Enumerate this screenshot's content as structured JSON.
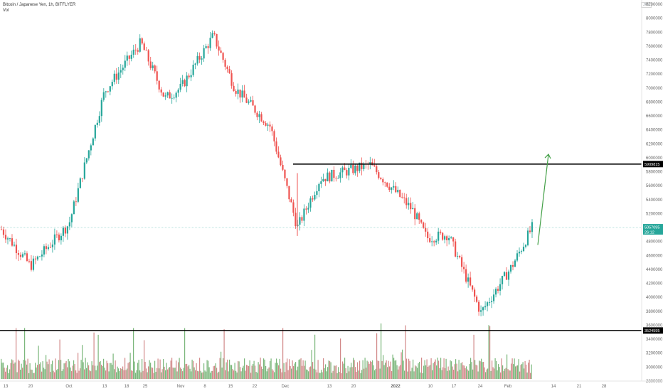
{
  "legend": {
    "symbol_line": "Bitcoin / Japanese Yen, 1h, BITFLYER",
    "volume_label": "Vol"
  },
  "currency_badge": "JPY",
  "chart_data": {
    "type": "candlestick",
    "title": "Bitcoin / Japanese Yen, 1h, BITFLYER",
    "y_axis_ticks": [
      "8200000",
      "8000000",
      "7800000",
      "7600000",
      "7400000",
      "7200000",
      "7000000",
      "6800000",
      "6600000",
      "6400000",
      "6200000",
      "6000000",
      "5800000",
      "5600000",
      "5400000",
      "5200000",
      "5000000",
      "4800000",
      "4600000",
      "4400000",
      "4200000",
      "4000000",
      "3800000",
      "3600000",
      "3400000",
      "3200000",
      "3000000",
      "2800000"
    ],
    "ylim": [
      2800000,
      8200000
    ],
    "x_axis_ticks": [
      "13",
      "20",
      "Oct",
      "13",
      "18",
      "25",
      "Nov",
      "8",
      "15",
      "22",
      "Dec",
      "13",
      "20",
      "2022",
      "10",
      "17",
      "24",
      "Feb",
      "14",
      "21",
      "28"
    ],
    "price_path": [
      [
        "13",
        5000000
      ],
      [
        "20",
        4450000
      ],
      [
        "Oct",
        5050000
      ],
      [
        "13",
        6950000
      ],
      [
        "18",
        7650000
      ],
      [
        "25",
        6850000
      ],
      [
        "Nov",
        7000000
      ],
      [
        "8",
        7750000
      ],
      [
        "15",
        7000000
      ],
      [
        "22",
        6450000
      ],
      [
        "Dec",
        5000000
      ],
      [
        "13",
        5700000
      ],
      [
        "20",
        5900000
      ],
      [
        "2022",
        5250000
      ],
      [
        "10",
        4850000
      ],
      [
        "17",
        4900000
      ],
      [
        "24",
        3780000
      ],
      [
        "Feb",
        4450000
      ],
      [
        "Feb",
        5000000
      ]
    ],
    "horizontal_levels": [
      {
        "label": "5909815",
        "value": 5909815
      },
      {
        "label": "3524595",
        "value": 3524595
      }
    ],
    "current_price": {
      "label": "5057095",
      "countdown": "26:12"
    },
    "projection": {
      "from": 4750000,
      "to": 6050000
    },
    "colors": {
      "up": "#26a69a",
      "down": "#ef5350",
      "vol_up": "#5aa55a",
      "vol_down": "#c76a6a",
      "projection": "#43a047",
      "level": "#000000",
      "price_tag": "#26a69a"
    },
    "grid": false,
    "legend_position": "top-left"
  }
}
